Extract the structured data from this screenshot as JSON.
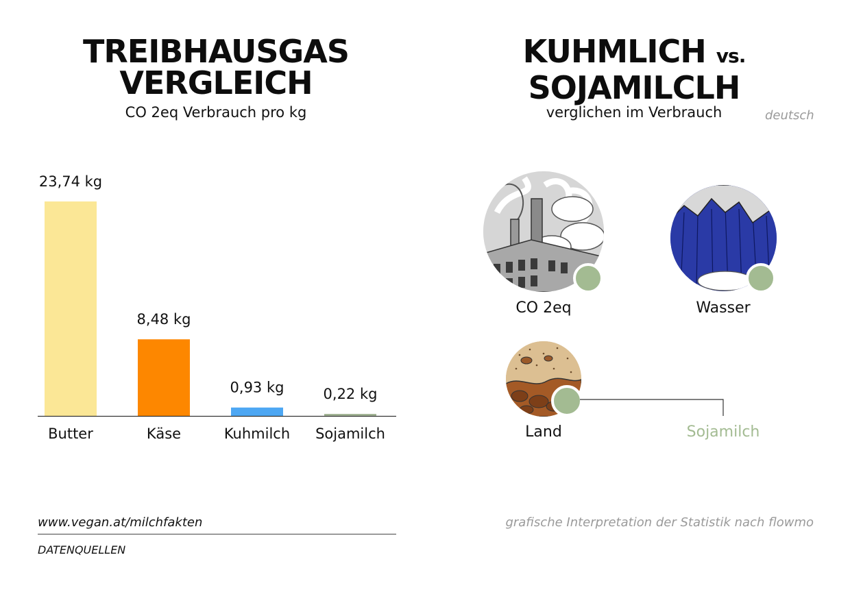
{
  "left_panel": {
    "title_line1": "TREIBHAUSGAS",
    "title_line2": "VERGLEICH",
    "subtitle": "CO 2eq Verbrauch pro kg"
  },
  "right_panel": {
    "title_line1_main": "KUHMLICH",
    "title_line1_vs": "vs.",
    "title_line2": "SOJAMILCLH",
    "subtitle": "verglichen im Verbrauch",
    "language": "deutsch",
    "icons": [
      {
        "name": "co2-factory-icon",
        "label": "CO 2eq"
      },
      {
        "name": "water-waterfall-icon",
        "label": "Wasser"
      },
      {
        "name": "land-soil-icon",
        "label": "Land"
      }
    ],
    "legend_label": "Sojamilch",
    "legend_color": "#a3bb92"
  },
  "chart_data": {
    "type": "bar",
    "categories": [
      "Butter",
      "Käse",
      "Kuhmilch",
      "Sojamilch"
    ],
    "values": [
      23.74,
      8.48,
      0.93,
      0.22
    ],
    "value_labels": [
      "23,74 kg",
      "8,48 kg",
      "0,93 kg",
      "0,22 kg"
    ],
    "colors": [
      "#fbe796",
      "#fd8700",
      "#4da7f3",
      "#a3b596"
    ],
    "ylim": [
      0,
      23.74
    ],
    "grid": false,
    "legend": "none"
  },
  "footer": {
    "source_url": "www.vegan.at/milchfakten",
    "source_label": "DATENQUELLEN",
    "credit": "grafische Interpretation der Statistik nach flowmo"
  }
}
